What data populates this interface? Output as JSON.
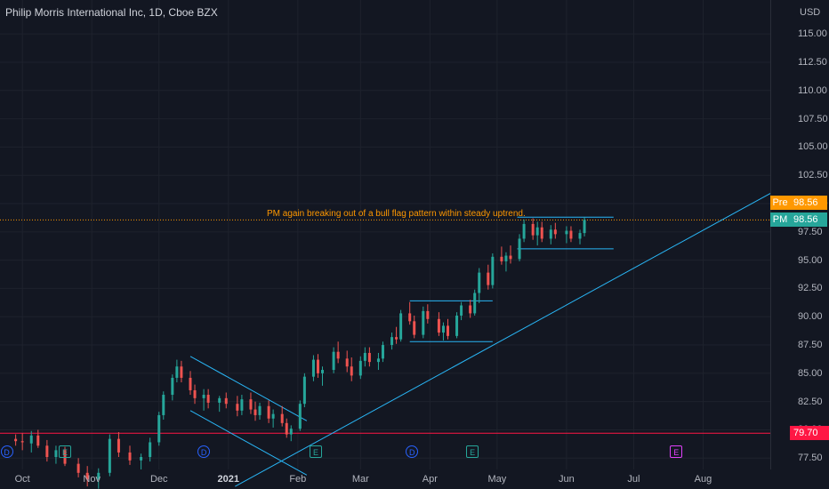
{
  "header": {
    "title": "Philip Morris International Inc, 1D, Cboe BZX",
    "currency": "USD"
  },
  "tags": {
    "pre": {
      "label": "Pre",
      "value": "98.56",
      "color": "#ff9800"
    },
    "last": {
      "label": "PM",
      "value": "98.56",
      "color": "#26a69a"
    },
    "level": {
      "value": "79.70",
      "color": "#ff1744"
    }
  },
  "annotation": "PM again breaking out of a bull flag pattern within steady uptrend.",
  "chart_data": {
    "type": "candlestick",
    "ylim": [
      76.5,
      118
    ],
    "y_ticks": [
      "77.50",
      "80.00",
      "82.50",
      "85.00",
      "87.50",
      "90.00",
      "92.50",
      "95.00",
      "97.50",
      "100.00",
      "102.50",
      "105.00",
      "107.50",
      "110.00",
      "112.50",
      "115.00"
    ],
    "x_ticks": [
      {
        "label": "Oct",
        "bold": false
      },
      {
        "label": "Nov",
        "bold": false
      },
      {
        "label": "Dec",
        "bold": false
      },
      {
        "label": "2021",
        "bold": true
      },
      {
        "label": "Feb",
        "bold": false
      },
      {
        "label": "Mar",
        "bold": false
      },
      {
        "label": "Apr",
        "bold": false
      },
      {
        "label": "May",
        "bold": false
      },
      {
        "label": "Jun",
        "bold": false
      },
      {
        "label": "Jul",
        "bold": false
      },
      {
        "label": "Aug",
        "bold": false
      }
    ],
    "x_range": [
      "2020-09-21",
      "2021-08-31"
    ],
    "horizontal_level": 79.7,
    "last_price": 98.56,
    "candles": [
      [
        "2020-09-28",
        79.2,
        79.6,
        78.6,
        79.0
      ],
      [
        "2020-10-01",
        79.0,
        79.7,
        78.2,
        78.9
      ],
      [
        "2020-10-05",
        78.8,
        79.9,
        78.0,
        79.5
      ],
      [
        "2020-10-08",
        79.5,
        80.0,
        78.4,
        78.6
      ],
      [
        "2020-10-12",
        78.6,
        79.1,
        77.2,
        77.6
      ],
      [
        "2020-10-16",
        77.6,
        78.6,
        77.0,
        78.2
      ],
      [
        "2020-10-20",
        78.2,
        78.5,
        76.8,
        77.0
      ],
      [
        "2020-10-26",
        77.0,
        77.5,
        75.8,
        76.2
      ],
      [
        "2020-10-30",
        76.2,
        76.8,
        75.0,
        75.6
      ],
      [
        "2020-11-04",
        75.6,
        76.6,
        74.8,
        76.2
      ],
      [
        "2020-11-09",
        76.2,
        79.6,
        75.9,
        79.2
      ],
      [
        "2020-11-13",
        79.2,
        79.8,
        77.6,
        78.0
      ],
      [
        "2020-11-18",
        78.0,
        78.6,
        76.9,
        77.3
      ],
      [
        "2020-11-23",
        77.3,
        77.9,
        76.5,
        77.6
      ],
      [
        "2020-11-27",
        77.6,
        79.3,
        77.2,
        78.9
      ],
      [
        "2020-12-01",
        78.9,
        81.6,
        78.6,
        81.3
      ],
      [
        "2020-12-03",
        81.3,
        83.4,
        80.9,
        83.1
      ],
      [
        "2020-12-07",
        83.1,
        84.9,
        82.6,
        84.6
      ],
      [
        "2020-12-09",
        84.6,
        86.2,
        84.2,
        85.6
      ],
      [
        "2020-12-11",
        85.6,
        86.1,
        84.2,
        84.6
      ],
      [
        "2020-12-15",
        84.6,
        85.2,
        83.1,
        83.5
      ],
      [
        "2020-12-17",
        83.5,
        84.0,
        82.3,
        82.8
      ],
      [
        "2020-12-21",
        82.8,
        83.6,
        81.7,
        83.1
      ],
      [
        "2020-12-23",
        83.1,
        83.6,
        81.9,
        82.4
      ],
      [
        "2020-12-28",
        82.4,
        83.0,
        81.6,
        82.8
      ],
      [
        "2020-12-31",
        82.8,
        83.3,
        81.9,
        82.3
      ],
      [
        "2021-01-05",
        82.3,
        83.0,
        81.2,
        81.7
      ],
      [
        "2021-01-07",
        81.7,
        83.1,
        81.3,
        82.7
      ],
      [
        "2021-01-11",
        82.7,
        83.3,
        81.4,
        81.8
      ],
      [
        "2021-01-13",
        81.8,
        82.5,
        80.8,
        81.3
      ],
      [
        "2021-01-15",
        81.3,
        82.4,
        80.9,
        82.1
      ],
      [
        "2021-01-19",
        82.1,
        82.6,
        80.6,
        81.0
      ],
      [
        "2021-01-21",
        81.0,
        81.8,
        80.2,
        81.4
      ],
      [
        "2021-01-25",
        81.4,
        82.1,
        80.3,
        80.6
      ],
      [
        "2021-01-27",
        80.6,
        81.0,
        79.3,
        79.6
      ],
      [
        "2021-01-29",
        79.6,
        80.4,
        79.0,
        80.1
      ],
      [
        "2021-02-02",
        80.1,
        82.6,
        79.9,
        82.3
      ],
      [
        "2021-02-04",
        82.3,
        85.0,
        82.0,
        84.7
      ],
      [
        "2021-02-08",
        84.7,
        86.6,
        84.3,
        86.2
      ],
      [
        "2021-02-10",
        86.2,
        86.7,
        84.6,
        85.0
      ],
      [
        "2021-02-12",
        85.0,
        85.6,
        83.9,
        85.3
      ],
      [
        "2021-02-17",
        85.3,
        87.3,
        85.0,
        86.9
      ],
      [
        "2021-02-19",
        86.9,
        87.8,
        85.9,
        86.3
      ],
      [
        "2021-02-23",
        86.3,
        87.0,
        85.1,
        85.6
      ],
      [
        "2021-02-25",
        85.6,
        86.4,
        84.3,
        84.8
      ],
      [
        "2021-03-01",
        84.8,
        86.5,
        84.5,
        86.1
      ],
      [
        "2021-03-03",
        86.1,
        87.3,
        85.6,
        86.8
      ],
      [
        "2021-03-05",
        86.8,
        87.3,
        85.6,
        86.0
      ],
      [
        "2021-03-09",
        86.0,
        86.8,
        85.3,
        86.3
      ],
      [
        "2021-03-11",
        86.3,
        87.8,
        86.0,
        87.5
      ],
      [
        "2021-03-15",
        87.5,
        88.6,
        87.1,
        88.2
      ],
      [
        "2021-03-17",
        88.2,
        89.1,
        87.6,
        88.0
      ],
      [
        "2021-03-19",
        88.0,
        90.6,
        87.8,
        90.3
      ],
      [
        "2021-03-23",
        90.3,
        91.3,
        89.3,
        89.6
      ],
      [
        "2021-03-25",
        89.6,
        90.1,
        88.1,
        88.4
      ],
      [
        "2021-03-29",
        88.4,
        90.9,
        88.1,
        90.5
      ],
      [
        "2021-03-31",
        90.5,
        91.1,
        89.4,
        89.8
      ],
      [
        "2021-04-05",
        89.8,
        90.4,
        88.3,
        88.6
      ],
      [
        "2021-04-07",
        88.6,
        89.5,
        87.9,
        89.2
      ],
      [
        "2021-04-09",
        89.2,
        89.8,
        88.0,
        88.3
      ],
      [
        "2021-04-13",
        88.3,
        90.4,
        88.1,
        90.1
      ],
      [
        "2021-04-15",
        90.1,
        91.3,
        89.7,
        91.0
      ],
      [
        "2021-04-19",
        91.0,
        91.5,
        89.9,
        90.3
      ],
      [
        "2021-04-21",
        90.3,
        92.4,
        90.1,
        92.1
      ],
      [
        "2021-04-23",
        92.1,
        94.3,
        91.2,
        93.9
      ],
      [
        "2021-04-27",
        93.9,
        94.6,
        92.4,
        92.8
      ],
      [
        "2021-04-29",
        92.8,
        95.6,
        92.5,
        95.3
      ],
      [
        "2021-05-03",
        95.3,
        96.2,
        94.6,
        94.9
      ],
      [
        "2021-05-05",
        94.9,
        95.7,
        94.0,
        95.4
      ],
      [
        "2021-05-07",
        95.4,
        96.3,
        94.7,
        95.1
      ],
      [
        "2021-05-11",
        95.1,
        97.3,
        94.9,
        96.9
      ],
      [
        "2021-05-13",
        96.9,
        98.6,
        96.6,
        98.2
      ],
      [
        "2021-05-17",
        98.2,
        98.7,
        96.8,
        97.2
      ],
      [
        "2021-05-19",
        97.2,
        98.4,
        96.3,
        97.9
      ],
      [
        "2021-05-21",
        97.9,
        98.4,
        96.6,
        96.9
      ],
      [
        "2021-05-25",
        96.9,
        98.1,
        96.4,
        97.7
      ],
      [
        "2021-05-27",
        97.7,
        98.3,
        96.9,
        97.3
      ],
      [
        "2021-06-01",
        97.3,
        98.0,
        96.5,
        97.6
      ],
      [
        "2021-06-03",
        97.6,
        98.0,
        96.6,
        96.9
      ],
      [
        "2021-06-07",
        96.9,
        97.7,
        96.4,
        97.4
      ],
      [
        "2021-06-09",
        97.4,
        98.8,
        97.1,
        98.56
      ]
    ],
    "events": [
      {
        "type": "dividend",
        "label": "D",
        "date": "2020-09-24"
      },
      {
        "type": "earnings",
        "label": "E",
        "date": "2020-10-20"
      },
      {
        "type": "dividend",
        "label": "D",
        "date": "2020-12-21"
      },
      {
        "type": "earnings",
        "label": "E",
        "date": "2021-02-09"
      },
      {
        "type": "dividend",
        "label": "D",
        "date": "2021-03-24"
      },
      {
        "type": "earnings",
        "label": "E",
        "date": "2021-04-20"
      },
      {
        "type": "earnings-upcoming",
        "label": "E",
        "date": "2021-07-20"
      }
    ],
    "drawings": [
      {
        "type": "uptrend",
        "from": [
          "2021-01-04",
          75.0
        ],
        "to": [
          "2021-08-31",
          100.9
        ]
      },
      {
        "type": "channel",
        "from": [
          "2020-12-15",
          86.5
        ],
        "to": [
          "2021-02-05",
          80.8
        ]
      },
      {
        "type": "channel",
        "from": [
          "2020-12-15",
          81.7
        ],
        "to": [
          "2021-02-05",
          76.0
        ]
      },
      {
        "type": "flag",
        "from": [
          "2021-03-23",
          91.4
        ],
        "to": [
          "2021-04-29",
          91.4
        ]
      },
      {
        "type": "flag",
        "from": [
          "2021-03-23",
          87.8
        ],
        "to": [
          "2021-04-29",
          87.8
        ]
      },
      {
        "type": "flag",
        "from": [
          "2021-05-10",
          98.8
        ],
        "to": [
          "2021-06-22",
          98.8
        ]
      },
      {
        "type": "flag",
        "from": [
          "2021-05-10",
          96.0
        ],
        "to": [
          "2021-06-22",
          96.0
        ]
      }
    ],
    "colors": {
      "up": "#26a69a",
      "down": "#ef5350",
      "drawing": "#29b6f6",
      "grid": "#1e222d"
    }
  }
}
